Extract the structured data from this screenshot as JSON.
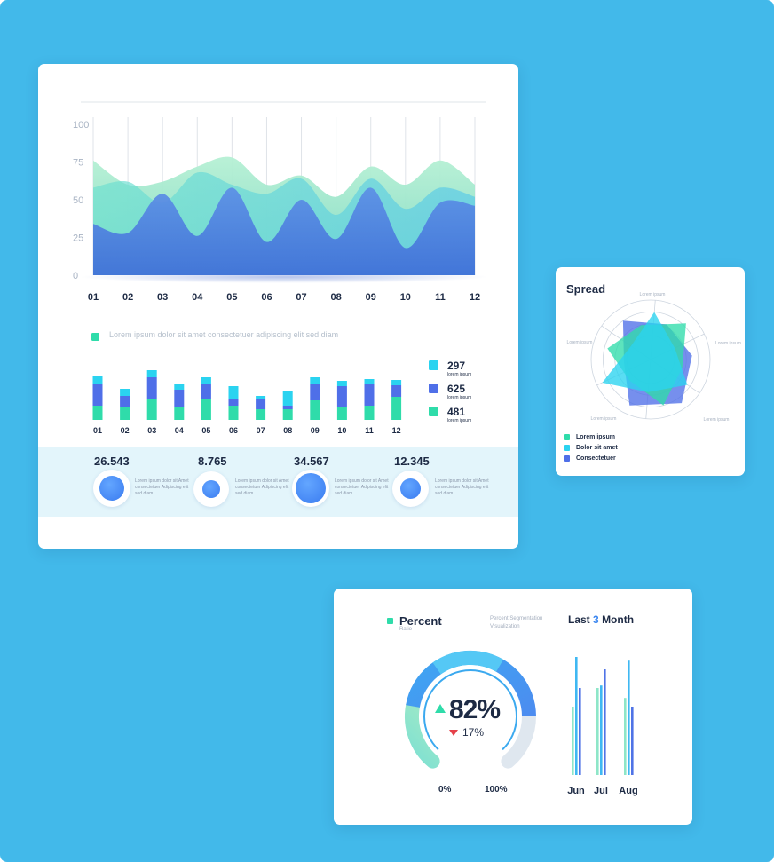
{
  "colors": {
    "background": "#42b9ea",
    "green": "#2fdcaa",
    "cyan": "#2ad3f0",
    "blue": "#4f6fe8",
    "dark": "#1d2a44",
    "grey": "#9aa5b8",
    "ticks": "#a9b4c4"
  },
  "main": {
    "legend_text": "Lorem ipsum dolor sit amet consectetuer adipiscing elit sed diam",
    "stats": [
      {
        "value": "26.543",
        "desc": "Lorem ipsum dolor sit Amet consectetuer Adipiscing elit sed diam"
      },
      {
        "value": "8.765",
        "desc": "Lorem ipsum dolor sit Amet consectetuer Adipiscing elit sed diam"
      },
      {
        "value": "34.567",
        "desc": "Lorem ipsum dolor sit Amet consectetuer Adipiscing elit sed diam"
      },
      {
        "value": "12.345",
        "desc": "Lorem ipsum dolor sit Amet consectetuer Adipiscing elit sed diam"
      }
    ]
  },
  "spread": {
    "title": "Spread",
    "axis_labels": [
      "Lorem ipsum",
      "Lorem ipsum",
      "Lorem ipsum",
      "Lorem ipsum",
      "Lorem ipsum",
      "Lorem ipsum"
    ],
    "legend": [
      {
        "label": "Lorem ipsum",
        "color": "#2fdcaa"
      },
      {
        "label": "Dolor sit amet",
        "color": "#2ad3f0"
      },
      {
        "label": "Consectetuer",
        "color": "#4f6fe8"
      }
    ]
  },
  "percent": {
    "title": "Percent",
    "subtitle": "Ratio",
    "note": "Percent Segmentation Visualization",
    "value": "82%",
    "sub_value": "17%",
    "min_label": "0%",
    "max_label": "100%",
    "fraction": 0.82,
    "last_title_pre": "Last",
    "last_title_num": "3",
    "last_title_post": "Month",
    "months": [
      "Jun",
      "Jul",
      "Aug"
    ]
  },
  "chart_data": [
    {
      "type": "area",
      "categories": [
        "01",
        "02",
        "03",
        "04",
        "05",
        "06",
        "07",
        "08",
        "09",
        "10",
        "11",
        "12"
      ],
      "ylim": [
        0,
        100
      ],
      "yticks": [
        0,
        25,
        50,
        75,
        100
      ],
      "grid": true,
      "series": [
        {
          "values": [
            76,
            60,
            62,
            72,
            78,
            60,
            66,
            52,
            72,
            60,
            76,
            60
          ]
        },
        {
          "values": [
            58,
            62,
            48,
            68,
            60,
            54,
            64,
            40,
            64,
            44,
            58,
            52
          ]
        },
        {
          "values": [
            34,
            28,
            54,
            26,
            58,
            22,
            50,
            24,
            58,
            18,
            48,
            46
          ]
        }
      ]
    },
    {
      "type": "bar",
      "categories": [
        "01",
        "02",
        "03",
        "04",
        "05",
        "06",
        "07",
        "08",
        "09",
        "10",
        "11",
        "12"
      ],
      "legend": [
        {
          "value": "297",
          "label": "lorem ipsum",
          "color": "#2ad3f0"
        },
        {
          "value": "625",
          "label": "lorem ipsum",
          "color": "#4f6fe8"
        },
        {
          "value": "481",
          "label": "lorem ipsum",
          "color": "#2fdcaa"
        }
      ],
      "series": [
        {
          "color": "#2fdcaa",
          "values": [
            16,
            14,
            24,
            14,
            24,
            16,
            12,
            12,
            22,
            14,
            16,
            26
          ]
        },
        {
          "color": "#4f6fe8",
          "values": [
            24,
            13,
            24,
            20,
            16,
            8,
            11,
            4,
            18,
            24,
            24,
            13
          ]
        },
        {
          "color": "#2ad3f0",
          "values": [
            10,
            8,
            8,
            6,
            8,
            14,
            4,
            16,
            8,
            6,
            6,
            6
          ]
        }
      ]
    },
    {
      "type": "radar",
      "axes": 6,
      "series": [
        {
          "name": "Lorem ipsum",
          "color": "#2fdcaa",
          "values": [
            0.6,
            0.85,
            0.55,
            0.8,
            0.5,
            0.75
          ]
        },
        {
          "name": "Dolor sit amet",
          "color": "#2ad3f0",
          "values": [
            0.8,
            0.45,
            0.75,
            0.55,
            0.9,
            0.4
          ]
        },
        {
          "name": "Consectetuer",
          "color": "#4f6fe8",
          "values": [
            0.65,
            0.7,
            0.9,
            0.85,
            0.45,
            0.8
          ]
        }
      ]
    },
    {
      "type": "bar",
      "categories": [
        "Jun",
        "Jul",
        "Aug"
      ],
      "series": [
        {
          "color": "#8ee6c8",
          "values": [
            55,
            70,
            62
          ]
        },
        {
          "color": "#3fb8f2",
          "values": [
            95,
            72,
            92
          ]
        },
        {
          "color": "#4f73e6",
          "values": [
            70,
            85,
            55
          ]
        }
      ]
    }
  ]
}
